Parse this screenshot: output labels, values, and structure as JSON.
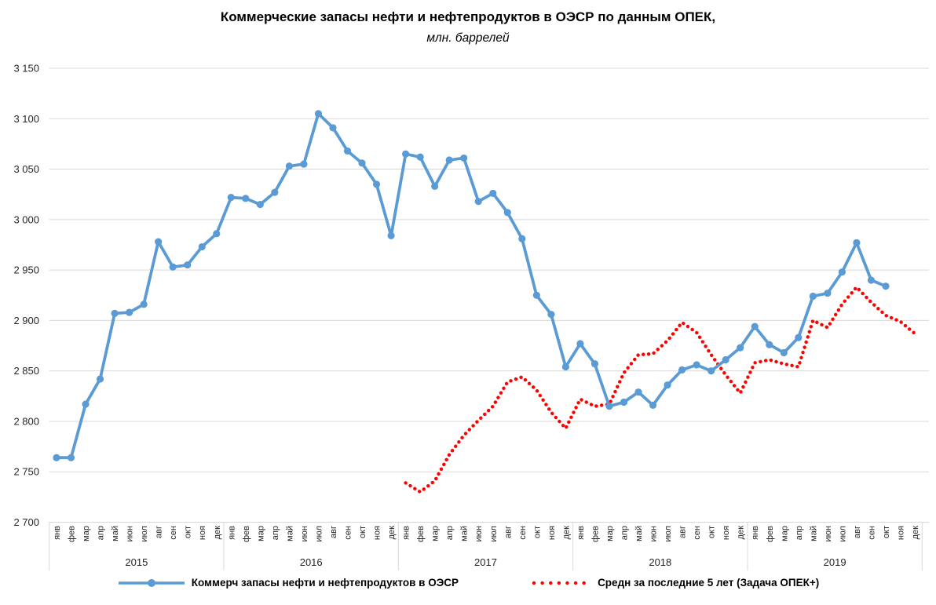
{
  "chart_data": {
    "type": "line",
    "title": "Коммерческие запасы нефти и нефтепродуктов в ОЭСР по данным ОПЕК,",
    "subtitle": "млн. баррелей",
    "ylim": [
      2700,
      3150
    ],
    "ytick_step": 50,
    "ytick_labels": [
      "3 150",
      "3 100",
      "3 050",
      "3 000",
      "2 950",
      "2 900",
      "2 850",
      "2 800",
      "2 750",
      "2 700"
    ],
    "grid": "horizontal",
    "grid_color": "#d9d9d9",
    "separator_color": "#bfbfbf",
    "axis_text_color": "#262626",
    "legend_position": "bottom",
    "months": [
      "янв",
      "фев",
      "мар",
      "апр",
      "май",
      "июн",
      "июл",
      "авг",
      "сен",
      "окт",
      "ноя",
      "дек"
    ],
    "years": [
      "2015",
      "2016",
      "2017",
      "2018",
      "2019"
    ],
    "series": [
      {
        "name": "Коммерч запасы нефти и нефтепродуктов в ОЭСР",
        "color": "#5B9BD5",
        "style": "solid",
        "marker": "circle",
        "values": [
          2764,
          2764,
          2817,
          2842,
          2907,
          2908,
          2916,
          2978,
          2953,
          2955,
          2973,
          2986,
          3022,
          3021,
          3015,
          3027,
          3053,
          3055,
          3105,
          3091,
          3068,
          3056,
          3035,
          2984,
          3065,
          3062,
          3033,
          3059,
          3061,
          3018,
          3026,
          3007,
          2981,
          2925,
          2906,
          2854,
          2877,
          2857,
          2815,
          2819,
          2829,
          2816,
          2836,
          2851,
          2856,
          2850,
          2861,
          2873,
          2894,
          2876,
          2868,
          2883,
          2924,
          2927,
          2948,
          2977,
          2940,
          2934,
          null,
          null
        ]
      },
      {
        "name": "Средн за последние 5 лет (Задача ОПЕК+)",
        "color": "#FF0000",
        "style": "dotted",
        "marker": "none",
        "values": [
          null,
          null,
          null,
          null,
          null,
          null,
          null,
          null,
          null,
          null,
          null,
          null,
          null,
          null,
          null,
          null,
          null,
          null,
          null,
          null,
          null,
          null,
          null,
          null,
          2739,
          2730,
          2741,
          2767,
          2786,
          2801,
          2815,
          2839,
          2844,
          2831,
          2809,
          2793,
          2822,
          2815,
          2817,
          2848,
          2866,
          2867,
          2880,
          2898,
          2888,
          2866,
          2846,
          2828,
          2858,
          2861,
          2857,
          2854,
          2900,
          2893,
          2916,
          2933,
          2918,
          2905,
          2899,
          2887
        ]
      }
    ]
  }
}
